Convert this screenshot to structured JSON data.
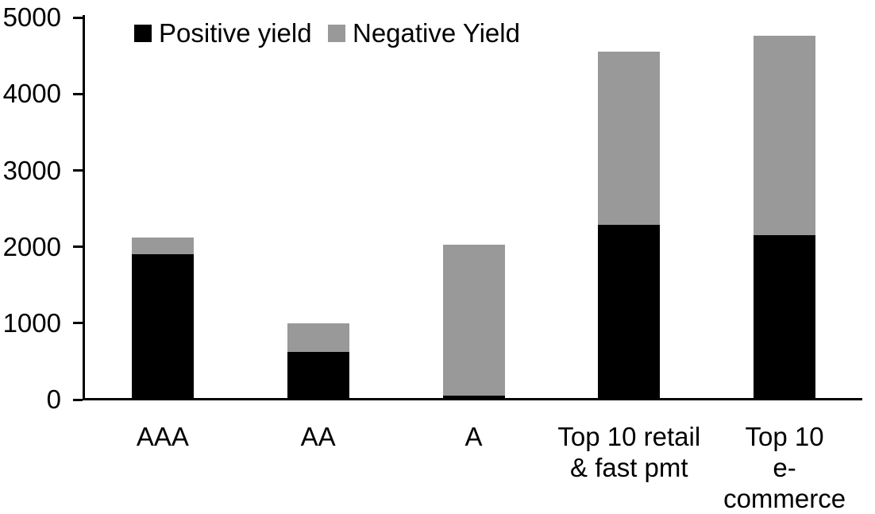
{
  "chart_data": {
    "type": "bar",
    "stacked": true,
    "title": "",
    "xlabel": "",
    "ylabel": "",
    "categories": [
      "AAA",
      "AA",
      "A",
      "Top 10 retail\n& fast pmt",
      "Top 10\ne-commerce"
    ],
    "series": [
      {
        "name": "Positive yield",
        "color": "#000000",
        "values": [
          1900,
          620,
          50,
          2290,
          2150
        ]
      },
      {
        "name": "Negative Yield",
        "color": "#999999",
        "values": [
          220,
          380,
          1980,
          2270,
          2610
        ]
      }
    ],
    "totals": [
      2120,
      1000,
      2030,
      4560,
      4760
    ],
    "ylim": [
      0,
      5000
    ],
    "yticks": [
      0,
      1000,
      2000,
      3000,
      4000,
      5000
    ],
    "legend_position": "top-left",
    "grid": false,
    "axis_color": "#000000",
    "background_color": "#ffffff"
  }
}
